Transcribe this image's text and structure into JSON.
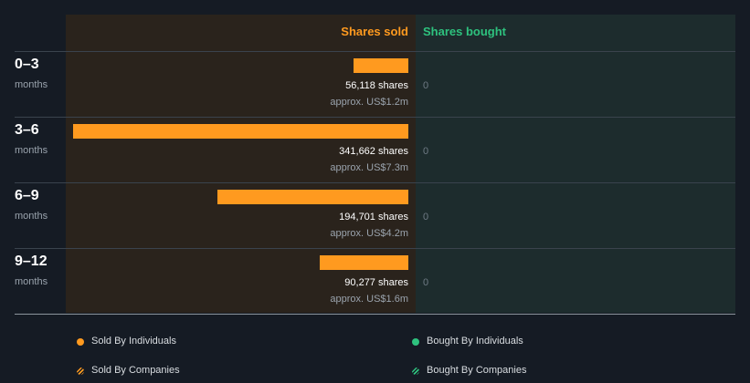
{
  "chart_data": {
    "type": "bar",
    "orientation": "horizontal",
    "headers": {
      "sold": "Shares sold",
      "bought": "Shares bought"
    },
    "categories": [
      {
        "period": "0–3",
        "unit": "months"
      },
      {
        "period": "3–6",
        "unit": "months"
      },
      {
        "period": "6–9",
        "unit": "months"
      },
      {
        "period": "9–12",
        "unit": "months"
      }
    ],
    "series": [
      {
        "name": "Shares sold",
        "values": [
          56118,
          341662,
          194701,
          90277
        ],
        "labels": [
          "56,118 shares",
          "341,662 shares",
          "194,701 shares",
          "90,277 shares"
        ],
        "approx": [
          "approx. US$1.2m",
          "approx. US$7.3m",
          "approx. US$4.2m",
          "approx. US$1.6m"
        ],
        "color": "#ff9a1f"
      },
      {
        "name": "Shares bought",
        "values": [
          0,
          0,
          0,
          0
        ],
        "labels": [
          "0",
          "0",
          "0",
          "0"
        ],
        "color": "#2ec27e"
      }
    ],
    "legend": {
      "placement": "bottom",
      "items": [
        {
          "label": "Sold By Individuals",
          "color": "#ff9a1f",
          "style": "solid"
        },
        {
          "label": "Bought By Individuals",
          "color": "#2ec27e",
          "style": "solid"
        },
        {
          "label": "Sold By Companies",
          "color": "#ff9a1f",
          "style": "hatched"
        },
        {
          "label": "Bought By Companies",
          "color": "#2ec27e",
          "style": "hatched"
        }
      ]
    }
  }
}
